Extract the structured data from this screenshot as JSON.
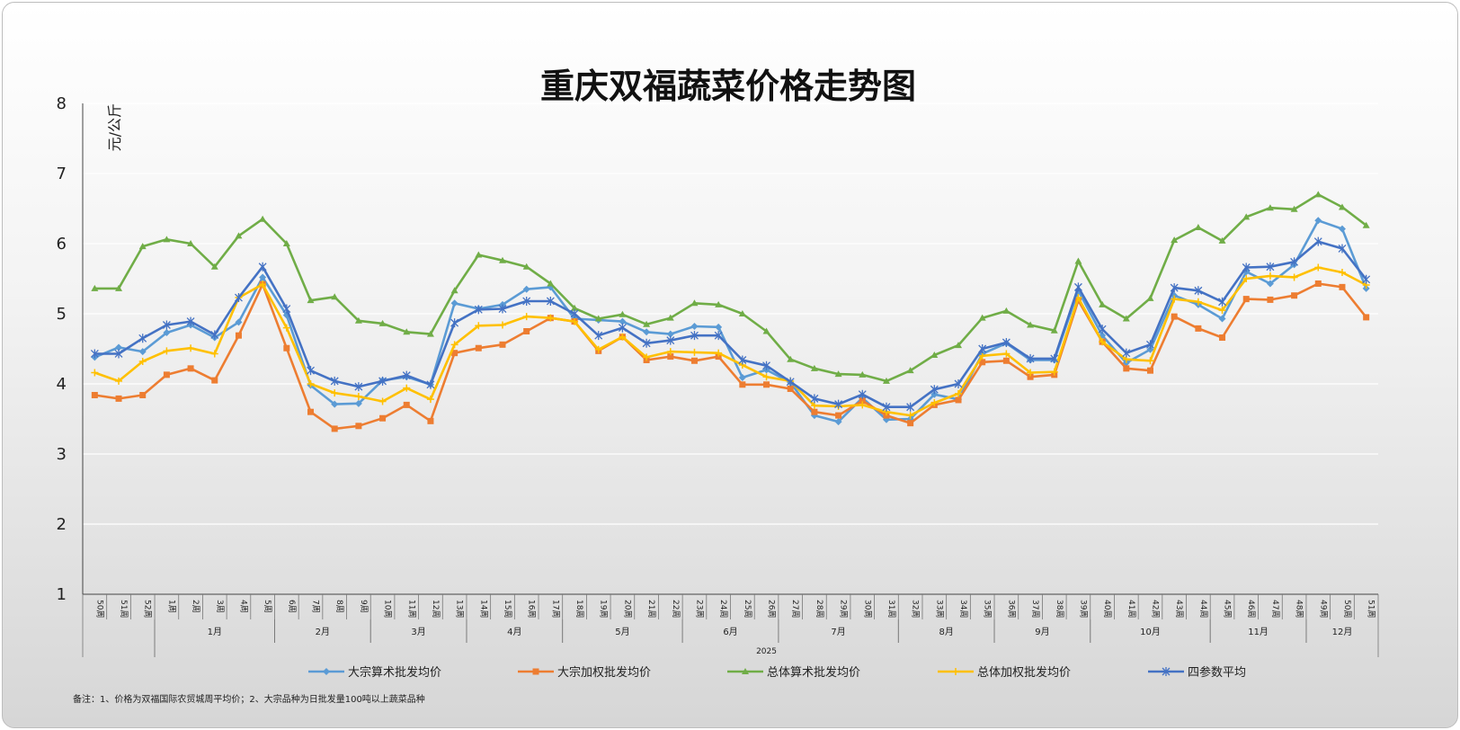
{
  "chart_data": {
    "type": "line",
    "title": "重庆双福蔬菜价格走势图",
    "ylabel": "元/公斤",
    "ylim": [
      1,
      8
    ],
    "yticks": [
      1,
      2,
      3,
      4,
      5,
      6,
      7,
      8
    ],
    "grid": true,
    "legend_position": "bottom",
    "categories": [
      "50周",
      "51周",
      "52周",
      "1周",
      "2周",
      "3周",
      "4周",
      "5周",
      "6周",
      "7周",
      "8周",
      "9周",
      "10周",
      "11周",
      "12周",
      "13周",
      "14周",
      "15周",
      "16周",
      "17周",
      "18周",
      "19周",
      "20周",
      "21周",
      "22周",
      "23周",
      "24周",
      "25周",
      "26周",
      "27周",
      "28周",
      "29周",
      "30周",
      "31周",
      "32周",
      "33周",
      "34周",
      "35周",
      "36周",
      "37周",
      "38周",
      "39周",
      "40周",
      "41周",
      "42周",
      "43周",
      "44周",
      "45周",
      "46周",
      "47周",
      "48周",
      "49周",
      "50周",
      "51周"
    ],
    "month_groups": [
      {
        "label": "",
        "start": 0,
        "end": 2
      },
      {
        "label": "1月",
        "start": 3,
        "end": 7
      },
      {
        "label": "2月",
        "start": 8,
        "end": 11
      },
      {
        "label": "3月",
        "start": 12,
        "end": 15
      },
      {
        "label": "4月",
        "start": 16,
        "end": 19
      },
      {
        "label": "5月",
        "start": 20,
        "end": 24
      },
      {
        "label": "6月",
        "start": 25,
        "end": 28
      },
      {
        "label": "7月",
        "start": 29,
        "end": 33
      },
      {
        "label": "8月",
        "start": 34,
        "end": 37
      },
      {
        "label": "9月",
        "start": 38,
        "end": 41
      },
      {
        "label": "10月",
        "start": 42,
        "end": 46
      },
      {
        "label": "11月",
        "start": 47,
        "end": 50
      },
      {
        "label": "12月",
        "start": 51,
        "end": 53
      }
    ],
    "year_groups": [
      {
        "label": "",
        "start": 0,
        "end": 2
      },
      {
        "label": "2025",
        "start": 3,
        "end": 53
      }
    ],
    "series": [
      {
        "name": "大宗算术批发均价",
        "color": "#5B9BD5",
        "marker": "diamond",
        "values": [
          4.38,
          4.52,
          4.46,
          4.73,
          4.84,
          4.66,
          4.88,
          5.52,
          4.98,
          3.98,
          3.71,
          3.72,
          4.05,
          4.1,
          3.99,
          5.15,
          5.07,
          5.13,
          5.35,
          5.38,
          4.93,
          4.91,
          4.89,
          4.74,
          4.71,
          4.82,
          4.81,
          4.09,
          4.2,
          4.02,
          3.55,
          3.46,
          3.8,
          3.49,
          3.5,
          3.85,
          3.78,
          4.43,
          4.58,
          4.34,
          4.34,
          5.33,
          4.69,
          4.3,
          4.49,
          5.26,
          5.13,
          4.93,
          5.6,
          5.43,
          5.7,
          6.33,
          6.21,
          5.36
        ]
      },
      {
        "name": "大宗加权批发均价",
        "color": "#ED7D31",
        "marker": "square",
        "values": [
          3.84,
          3.79,
          3.84,
          4.13,
          4.22,
          4.05,
          4.69,
          5.42,
          4.51,
          3.6,
          3.36,
          3.4,
          3.51,
          3.7,
          3.47,
          4.44,
          4.51,
          4.56,
          4.75,
          4.94,
          4.89,
          4.47,
          4.67,
          4.34,
          4.39,
          4.33,
          4.39,
          3.99,
          3.99,
          3.93,
          3.6,
          3.55,
          3.76,
          3.55,
          3.44,
          3.7,
          3.77,
          4.31,
          4.33,
          4.1,
          4.13,
          5.19,
          4.6,
          4.22,
          4.19,
          4.96,
          4.79,
          4.66,
          5.21,
          5.2,
          5.26,
          5.43,
          5.38,
          4.95
        ]
      },
      {
        "name": "总体算术批发均价",
        "color": "#70AD47",
        "marker": "triangle",
        "values": [
          5.36,
          5.36,
          5.96,
          6.06,
          6.0,
          5.67,
          6.11,
          6.35,
          6.0,
          5.19,
          5.24,
          4.9,
          4.86,
          4.74,
          4.71,
          5.33,
          5.84,
          5.76,
          5.67,
          5.43,
          5.08,
          4.93,
          4.99,
          4.85,
          4.94,
          5.15,
          5.13,
          5.0,
          4.75,
          4.35,
          4.22,
          4.14,
          4.13,
          4.04,
          4.19,
          4.41,
          4.55,
          4.94,
          5.04,
          4.84,
          4.76,
          5.75,
          5.13,
          4.93,
          5.22,
          6.05,
          6.23,
          6.04,
          6.38,
          6.51,
          6.49,
          6.7,
          6.52,
          6.26
        ]
      },
      {
        "name": "总体加权批发均价",
        "color": "#FFC000",
        "marker": "plus",
        "values": [
          4.16,
          4.04,
          4.32,
          4.47,
          4.51,
          4.43,
          5.23,
          5.42,
          4.8,
          4.0,
          3.87,
          3.82,
          3.75,
          3.94,
          3.78,
          4.56,
          4.83,
          4.84,
          4.96,
          4.94,
          4.89,
          4.49,
          4.67,
          4.38,
          4.46,
          4.45,
          4.44,
          4.27,
          4.1,
          4.04,
          3.69,
          3.68,
          3.7,
          3.6,
          3.55,
          3.73,
          3.86,
          4.4,
          4.43,
          4.16,
          4.17,
          5.23,
          4.6,
          4.35,
          4.33,
          5.21,
          5.17,
          5.05,
          5.5,
          5.54,
          5.52,
          5.66,
          5.59,
          5.41
        ]
      },
      {
        "name": "四参数平均",
        "color": "#4472C4",
        "marker": "star",
        "values": [
          4.43,
          4.43,
          4.65,
          4.84,
          4.89,
          4.7,
          5.23,
          5.67,
          5.07,
          4.19,
          4.04,
          3.96,
          4.04,
          4.12,
          3.99,
          4.87,
          5.06,
          5.07,
          5.18,
          5.18,
          5.0,
          4.69,
          4.8,
          4.58,
          4.62,
          4.69,
          4.69,
          4.34,
          4.26,
          4.03,
          3.79,
          3.71,
          3.85,
          3.67,
          3.67,
          3.92,
          4.0,
          4.5,
          4.59,
          4.36,
          4.36,
          5.38,
          4.78,
          4.44,
          4.56,
          5.37,
          5.33,
          5.17,
          5.66,
          5.67,
          5.74,
          6.03,
          5.93,
          5.49
        ]
      }
    ]
  },
  "footnote": "备注：1、价格为双福国际农贸城周平均价；2、大宗品种为日批发量100吨以上蔬菜品种"
}
